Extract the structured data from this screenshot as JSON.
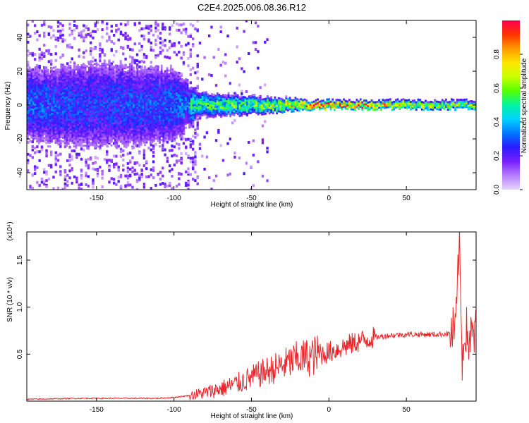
{
  "title": "C2E4.2025.006.08.36.R12",
  "chart_data": [
    {
      "type": "heatmap",
      "title": "C2E4.2025.006.08.36.R12",
      "xlabel": "Height of straight line (km)",
      "ylabel": "Frequency (Hz)",
      "xlim": [
        -195,
        95
      ],
      "ylim": [
        -50,
        50
      ],
      "xticks": [
        -150,
        -100,
        -50,
        0,
        50
      ],
      "yticks": [
        -40,
        -20,
        0,
        20,
        40
      ],
      "colorbar": {
        "label": "Normalized spectral amplitude",
        "range": [
          0.0,
          1.0
        ],
        "ticks": [
          0.0,
          0.2,
          0.4,
          0.6,
          0.8
        ],
        "colormap": [
          "#e6d5ff",
          "#b77dff",
          "#7a1fff",
          "#2a1bff",
          "#0077ff",
          "#00d2ff",
          "#00f5a0",
          "#55ff00",
          "#c8ff00",
          "#ffe600",
          "#ff9900",
          "#ff3300",
          "#ff0050"
        ]
      },
      "ridge": {
        "description_points": [
          {
            "x": -190,
            "peak": 0.45,
            "spread_hz": 25
          },
          {
            "x": -150,
            "peak": 0.4,
            "spread_hz": 30
          },
          {
            "x": -100,
            "peak": 0.45,
            "spread_hz": 25
          },
          {
            "x": -85,
            "peak": 0.55,
            "spread_hz": 8
          },
          {
            "x": -50,
            "peak": 0.62,
            "spread_hz": 6
          },
          {
            "x": -20,
            "peak": 0.8,
            "spread_hz": 4
          },
          {
            "x": -10,
            "peak": 1.0,
            "spread_hz": 3
          },
          {
            "x": 20,
            "peak": 0.9,
            "spread_hz": 3
          },
          {
            "x": 60,
            "peak": 0.75,
            "spread_hz": 3
          },
          {
            "x": 90,
            "peak": 0.7,
            "spread_hz": 3
          }
        ]
      }
    },
    {
      "type": "line",
      "xlabel": "Height of straight line (km)",
      "ylabel": "SNR (10 * v/v)",
      "y_multiplier": "(x10⁴)",
      "xlim": [
        -195,
        95
      ],
      "ylim": [
        0,
        1.8
      ],
      "xticks": [
        -150,
        -100,
        -50,
        0,
        50
      ],
      "yticks": [
        0.5,
        1.0,
        1.5
      ],
      "ytick_labels": [
        "0.5",
        "1.0",
        "1.5"
      ],
      "color": "#e8262a",
      "series": [
        {
          "x": [
            -195,
            -160,
            -130,
            -110,
            -100,
            -90,
            -80,
            -70,
            -60,
            -50,
            -40,
            -30,
            -20,
            -10,
            0,
            10,
            20,
            30,
            40,
            50,
            60,
            70,
            78,
            82,
            84,
            86,
            88,
            90,
            95
          ],
          "values": [
            0.02,
            0.03,
            0.03,
            0.03,
            0.04,
            0.06,
            0.09,
            0.13,
            0.18,
            0.25,
            0.32,
            0.38,
            0.45,
            0.48,
            0.52,
            0.58,
            0.64,
            0.68,
            0.7,
            0.71,
            0.71,
            0.71,
            0.72,
            0.75,
            1.75,
            0.45,
            0.8,
            0.65,
            0.72
          ]
        }
      ]
    }
  ]
}
